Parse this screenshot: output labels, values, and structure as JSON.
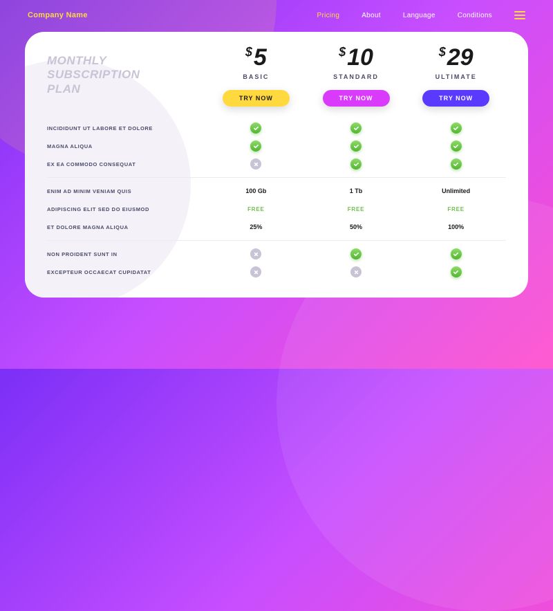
{
  "nav": {
    "company": "Company Name",
    "links": [
      "Pricing",
      "About",
      "Language",
      "Conditions"
    ],
    "active_index": 0
  },
  "title_line1": "MONTHLY",
  "title_line2": "SUBSCRIPTION",
  "title_line3": "PLAN",
  "plans": [
    {
      "currency": "$",
      "price": "5",
      "name": "BASIC",
      "cta": "TRY NOW",
      "btn_class": "btn-1"
    },
    {
      "currency": "$",
      "price": "10",
      "name": "STANDARD",
      "cta": "TRY NOW",
      "btn_class": "btn-2"
    },
    {
      "currency": "$",
      "price": "29",
      "name": "ULTIMATE",
      "cta": "TRY NOW",
      "btn_class": "btn-3"
    }
  ],
  "groups": [
    {
      "rows": [
        {
          "label": "INCIDIDUNT UT LABORE ET DOLORE",
          "cells": [
            {
              "t": "yes"
            },
            {
              "t": "yes"
            },
            {
              "t": "yes"
            }
          ]
        },
        {
          "label": "MAGNA ALIQUA",
          "cells": [
            {
              "t": "yes"
            },
            {
              "t": "yes"
            },
            {
              "t": "yes"
            }
          ]
        },
        {
          "label": "EX EA COMMODO CONSEQUAT",
          "cells": [
            {
              "t": "no"
            },
            {
              "t": "yes"
            },
            {
              "t": "yes"
            }
          ]
        }
      ]
    },
    {
      "rows": [
        {
          "label": "ENIM AD MINIM VENIAM QUIS",
          "cells": [
            {
              "t": "text",
              "v": "100 Gb"
            },
            {
              "t": "text",
              "v": "1 Tb"
            },
            {
              "t": "text",
              "v": "Unlimited"
            }
          ]
        },
        {
          "label": "ADIPISCING ELIT SED DO EIUSMOD",
          "cells": [
            {
              "t": "free",
              "v": "FREE"
            },
            {
              "t": "free",
              "v": "FREE"
            },
            {
              "t": "free",
              "v": "FREE"
            }
          ]
        },
        {
          "label": "ET DOLORE MAGNA ALIQUA",
          "cells": [
            {
              "t": "text",
              "v": "25%"
            },
            {
              "t": "text",
              "v": "50%"
            },
            {
              "t": "text",
              "v": "100%"
            }
          ]
        }
      ]
    },
    {
      "rows": [
        {
          "label": "NON PROIDENT SUNT IN",
          "cells": [
            {
              "t": "no"
            },
            {
              "t": "yes"
            },
            {
              "t": "yes"
            }
          ]
        },
        {
          "label": "EXCEPTEUR OCCAECAT CUPIDATAT",
          "cells": [
            {
              "t": "no"
            },
            {
              "t": "no"
            },
            {
              "t": "yes"
            }
          ]
        }
      ]
    }
  ],
  "colors": {
    "accent_yellow": "#ffd93d",
    "accent_magenta": "#d93afc",
    "accent_purple": "#5b3aff",
    "check_green": "#52b62f",
    "cross_gray": "#c9c3d6",
    "title_gray": "#c9c3d6",
    "text_dark": "#1a1a1a"
  }
}
